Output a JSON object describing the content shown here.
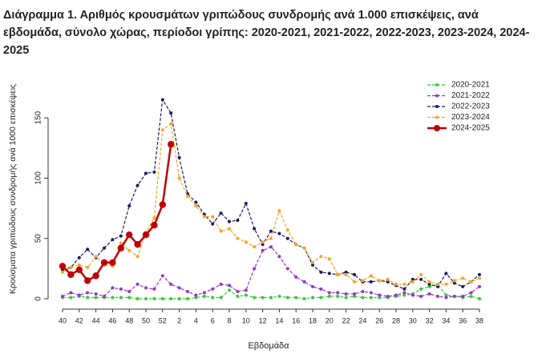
{
  "chart_data": {
    "type": "line",
    "title": "Διάγραμμα 1. Αριθμός κρουσμάτων γριπώδους συνδρομής ανά 1.000 επισκέψεις, ανά εβδομάδα, σύνολο χώρας, περίοδοι γρίπης: 2020-2021, 2021-2022, 2022-2023, 2023-2024, 2024-2025",
    "x_label": "Εβδομάδα",
    "y_label": "Κρούσματα γριπώδους συνδρομής ανά 1000 επισκέψεις",
    "categories": [
      "40",
      null,
      "42",
      null,
      "44",
      null,
      "46",
      null,
      "48",
      null,
      "50",
      null,
      "52",
      null,
      "2",
      null,
      "4",
      null,
      "6",
      null,
      "8",
      null,
      "10",
      null,
      "12",
      null,
      "14",
      null,
      "16",
      null,
      "18",
      null,
      "20",
      null,
      "22",
      null,
      "24",
      null,
      "26",
      null,
      "28",
      null,
      "30",
      null,
      "32",
      null,
      "34",
      null,
      "36",
      null,
      "38"
    ],
    "ylim": [
      -5,
      172
    ],
    "yticks": [
      0,
      50,
      100,
      150
    ],
    "legend": "top-right",
    "series": [
      {
        "name": "2020-2021",
        "color": "#33cc33",
        "values": [
          1,
          1,
          2,
          1,
          1,
          1,
          1,
          1,
          1,
          0,
          0,
          0,
          0,
          0,
          0,
          0,
          1,
          2,
          1,
          1,
          7,
          2,
          3,
          1,
          1,
          1,
          2,
          1,
          1,
          0,
          1,
          1,
          2,
          2,
          1,
          2,
          1,
          1,
          1,
          1,
          2,
          3,
          4,
          8,
          10,
          12,
          3,
          2,
          1,
          2,
          0
        ]
      },
      {
        "name": "2021-2022",
        "color": "#9933cc",
        "values": [
          2,
          5,
          3,
          5,
          4,
          2,
          9,
          8,
          6,
          12,
          9,
          8,
          19,
          12,
          9,
          6,
          3,
          5,
          8,
          12,
          11,
          6,
          7,
          25,
          40,
          43,
          35,
          25,
          18,
          14,
          10,
          8,
          5,
          5,
          4,
          4,
          6,
          5,
          3,
          2,
          3,
          5,
          3,
          2,
          4,
          2,
          1,
          2,
          2,
          5,
          10
        ]
      },
      {
        "name": "2022-2023",
        "color": "#1a1a66",
        "values": [
          24,
          26,
          34,
          41,
          34,
          42,
          49,
          52,
          77,
          94,
          104,
          105,
          165,
          154,
          117,
          87,
          80,
          70,
          62,
          71,
          64,
          65,
          79,
          58,
          45,
          56,
          54,
          50,
          45,
          42,
          28,
          22,
          21,
          20,
          22,
          20,
          14,
          14,
          15,
          14,
          11,
          8,
          16,
          16,
          12,
          10,
          21,
          13,
          10,
          14,
          20
        ]
      },
      {
        "name": "2023-2024",
        "color": "#f5a623",
        "values": [
          22,
          26,
          28,
          26,
          35,
          28,
          27,
          46,
          40,
          35,
          55,
          67,
          140,
          145,
          100,
          85,
          77,
          68,
          68,
          56,
          58,
          50,
          47,
          43,
          47,
          50,
          73,
          57,
          45,
          42,
          30,
          35,
          33,
          20,
          20,
          14,
          15,
          19,
          15,
          16,
          12,
          12,
          14,
          20,
          14,
          12,
          12,
          15,
          17,
          14,
          17
        ]
      },
      {
        "name": "2024-2025",
        "color": "#c00000",
        "values": [
          27,
          20,
          24,
          15,
          19,
          30,
          30,
          42,
          53,
          45,
          53,
          61,
          78,
          128,
          null,
          null,
          null,
          null,
          null,
          null,
          null,
          null,
          null,
          null,
          null,
          null,
          null,
          null,
          null,
          null,
          null,
          null,
          null,
          null,
          null,
          null,
          null,
          null,
          null,
          null,
          null,
          null,
          null,
          null,
          null,
          null,
          null,
          null,
          null,
          null,
          null
        ]
      }
    ]
  }
}
